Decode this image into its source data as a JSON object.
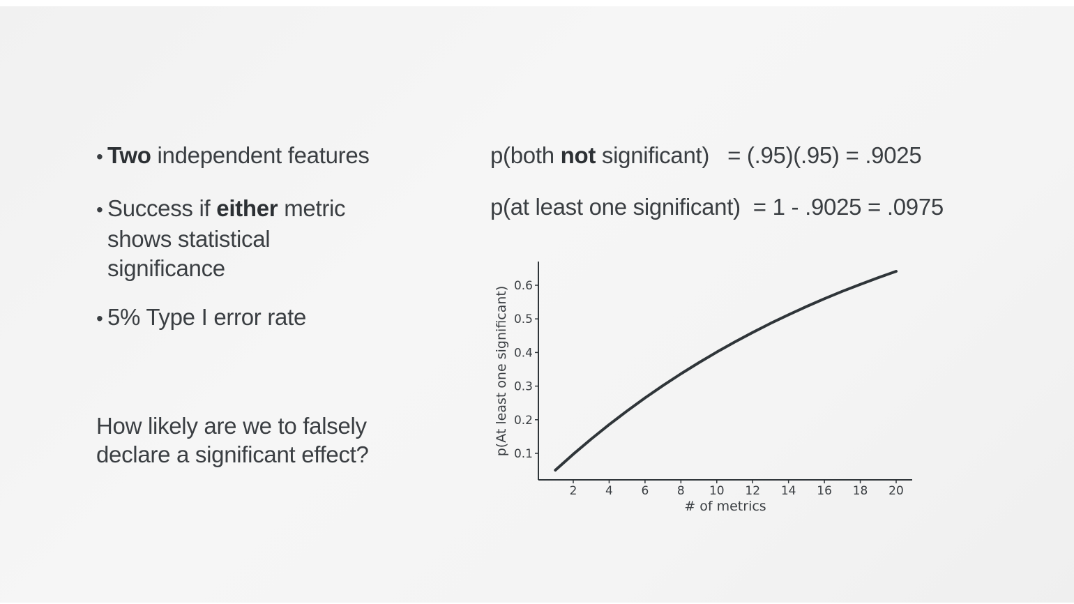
{
  "slide": {
    "bullets": [
      {
        "bold": "Two",
        "rest": " independent features"
      },
      {
        "pre": "Success if ",
        "bold": "either",
        "post": " metric",
        "line2": "shows statistical",
        "line3": "significance"
      },
      {
        "text": "5% Type I error rate"
      }
    ],
    "bullet_symbol": "•",
    "question_line1": "How likely are we to falsely",
    "question_line2": "declare a significant effect?",
    "formula1": {
      "pre": "p(both ",
      "bold": "not",
      "post": " significant)",
      "rhs": "= (.95)(.95) = .9025"
    },
    "formula2": {
      "lhs": "p(at least one significant)",
      "rhs": "= 1 - .9025 = .0975"
    }
  },
  "chart_data": {
    "type": "line",
    "xlabel": "# of metrics",
    "ylabel": "p(At least one significant)",
    "xlim": [
      0,
      21
    ],
    "ylim": [
      0.02,
      0.67
    ],
    "xticks": [
      2,
      4,
      6,
      8,
      10,
      12,
      14,
      16,
      18,
      20
    ],
    "yticks": [
      0.1,
      0.2,
      0.3,
      0.4,
      0.5,
      0.6
    ],
    "grid": false,
    "series": [
      {
        "x": [
          1,
          2,
          3,
          4,
          5,
          6,
          7,
          8,
          9,
          10,
          11,
          12,
          13,
          14,
          15,
          16,
          17,
          18,
          19,
          20
        ],
        "y": [
          0.05,
          0.0975,
          0.1426,
          0.1855,
          0.2262,
          0.2649,
          0.3017,
          0.3366,
          0.3698,
          0.4013,
          0.4312,
          0.4596,
          0.4867,
          0.5123,
          0.5367,
          0.5599,
          0.5819,
          0.6028,
          0.6226,
          0.6415
        ],
        "color": "#2f3539"
      }
    ]
  }
}
